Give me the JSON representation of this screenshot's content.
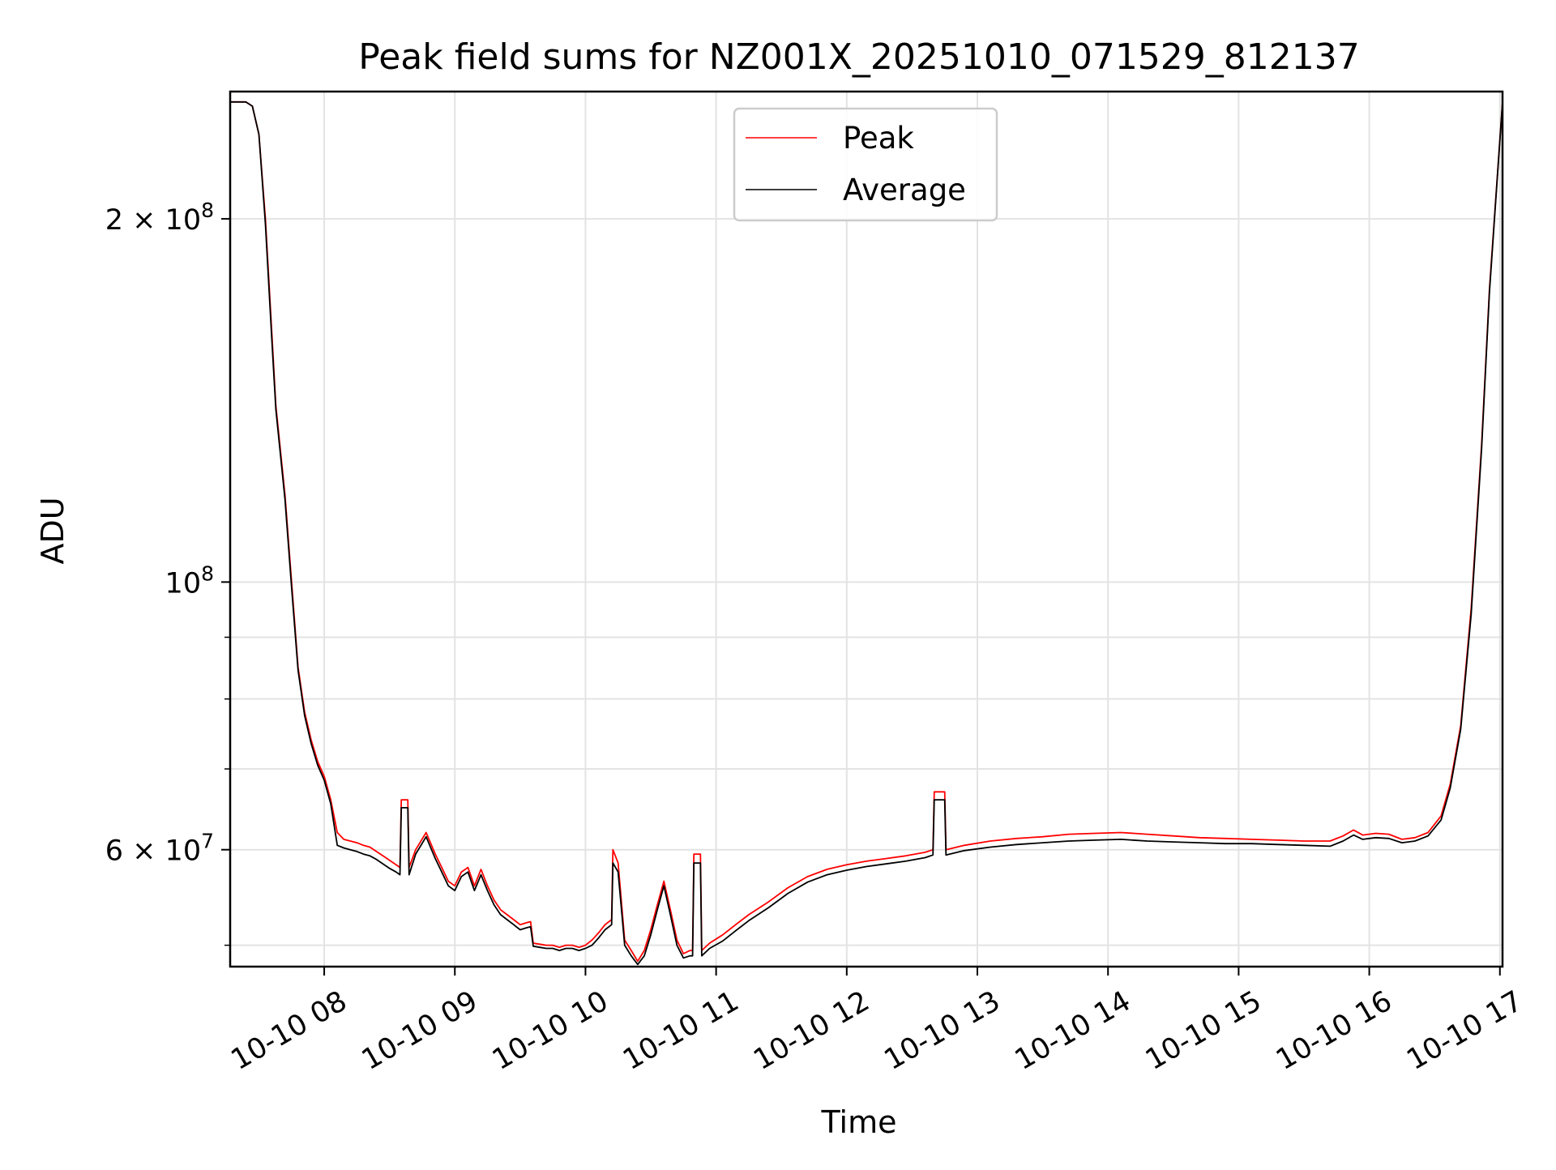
{
  "chart_data": {
    "type": "line",
    "title": "Peak field sums for NZ001X_20251010_071529_812137",
    "xlabel": "Time",
    "ylabel": "ADU",
    "yscale": "log",
    "grid": true,
    "legend": {
      "placement": "upper-center",
      "entries": [
        "Peak",
        "Average"
      ]
    },
    "xlim": [
      7.28,
      17.02
    ],
    "ylim": [
      48000000,
      255000000
    ],
    "x_ticks": [
      {
        "value": 8,
        "label": "10-10 08"
      },
      {
        "value": 9,
        "label": "10-10 09"
      },
      {
        "value": 10,
        "label": "10-10 10"
      },
      {
        "value": 11,
        "label": "10-10 11"
      },
      {
        "value": 12,
        "label": "10-10 12"
      },
      {
        "value": 13,
        "label": "10-10 13"
      },
      {
        "value": 14,
        "label": "10-10 14"
      },
      {
        "value": 15,
        "label": "10-10 15"
      },
      {
        "value": 16,
        "label": "10-10 16"
      },
      {
        "value": 17,
        "label": "10-10 17"
      }
    ],
    "y_major_ticks": [
      {
        "value": 60000000,
        "base": "6 × 10",
        "exp": "7"
      },
      {
        "value": 100000000,
        "base": "10",
        "exp": "8"
      },
      {
        "value": 200000000,
        "base": "2 × 10",
        "exp": "8"
      }
    ],
    "y_minor_ticks": [
      50000000,
      70000000,
      80000000,
      90000000
    ],
    "series": [
      {
        "name": "Peak",
        "color": "#ff0000",
        "x": [
          7.28,
          7.4,
          7.45,
          7.5,
          7.55,
          7.6,
          7.63,
          7.66,
          7.7,
          7.75,
          7.8,
          7.85,
          7.9,
          7.95,
          8.0,
          8.05,
          8.1,
          8.15,
          8.2,
          8.25,
          8.3,
          8.35,
          8.4,
          8.45,
          8.5,
          8.55,
          8.58,
          8.59,
          8.64,
          8.65,
          8.7,
          8.78,
          8.85,
          8.9,
          8.95,
          9.0,
          9.05,
          9.1,
          9.15,
          9.2,
          9.25,
          9.3,
          9.35,
          9.4,
          9.45,
          9.5,
          9.55,
          9.58,
          9.6,
          9.65,
          9.7,
          9.75,
          9.8,
          9.85,
          9.9,
          9.95,
          10.0,
          10.05,
          10.1,
          10.15,
          10.2,
          10.21,
          10.25,
          10.3,
          10.35,
          10.4,
          10.45,
          10.5,
          10.55,
          10.6,
          10.65,
          10.7,
          10.75,
          10.8,
          10.82,
          10.83,
          10.88,
          10.89,
          10.95,
          11.05,
          11.15,
          11.25,
          11.4,
          11.55,
          11.7,
          11.85,
          12.0,
          12.15,
          12.3,
          12.45,
          12.6,
          12.66,
          12.67,
          12.75,
          12.76,
          12.9,
          13.1,
          13.3,
          13.5,
          13.7,
          13.9,
          14.1,
          14.3,
          14.5,
          14.7,
          14.9,
          15.1,
          15.3,
          15.5,
          15.7,
          15.8,
          15.88,
          15.95,
          16.05,
          16.15,
          16.25,
          16.35,
          16.45,
          16.55,
          16.62,
          16.7,
          16.78,
          16.86,
          16.92,
          17.02
        ],
        "y": [
          250000000,
          250000000,
          248000000,
          235000000,
          200000000,
          160000000,
          140000000,
          130000000,
          118000000,
          100000000,
          85000000,
          78000000,
          74000000,
          71000000,
          69000000,
          66000000,
          62000000,
          61200000,
          61000000,
          60800000,
          60500000,
          60300000,
          59800000,
          59300000,
          58800000,
          58300000,
          58000000,
          66000000,
          66000000,
          58000000,
          60000000,
          62000000,
          59500000,
          58000000,
          56500000,
          56000000,
          57500000,
          58000000,
          56000000,
          57800000,
          56000000,
          54500000,
          53500000,
          53000000,
          52500000,
          52000000,
          52200000,
          52300000,
          50200000,
          50100000,
          50000000,
          50000000,
          49800000,
          50000000,
          50000000,
          49800000,
          50000000,
          50500000,
          51200000,
          52000000,
          52500000,
          60000000,
          58500000,
          50500000,
          49500000,
          48500000,
          49500000,
          51500000,
          54000000,
          56500000,
          53500000,
          50500000,
          49200000,
          49500000,
          49500000,
          59500000,
          59500000,
          49500000,
          50200000,
          51000000,
          52000000,
          53000000,
          54300000,
          55800000,
          57000000,
          57800000,
          58300000,
          58700000,
          59000000,
          59300000,
          59700000,
          60000000,
          67000000,
          67000000,
          60000000,
          60500000,
          61000000,
          61300000,
          61500000,
          61800000,
          61900000,
          62000000,
          61800000,
          61600000,
          61400000,
          61300000,
          61200000,
          61100000,
          61000000,
          61000000,
          61600000,
          62300000,
          61700000,
          61900000,
          61800000,
          61200000,
          61400000,
          62000000,
          64000000,
          68000000,
          76000000,
          95000000,
          130000000,
          175000000,
          250000000
        ]
      },
      {
        "name": "Average",
        "color": "#000000",
        "x": [
          7.28,
          7.4,
          7.45,
          7.5,
          7.55,
          7.6,
          7.63,
          7.66,
          7.7,
          7.75,
          7.8,
          7.85,
          7.9,
          7.95,
          8.0,
          8.05,
          8.1,
          8.15,
          8.2,
          8.25,
          8.3,
          8.35,
          8.4,
          8.45,
          8.5,
          8.55,
          8.58,
          8.59,
          8.64,
          8.65,
          8.7,
          8.78,
          8.85,
          8.9,
          8.95,
          9.0,
          9.05,
          9.1,
          9.15,
          9.2,
          9.25,
          9.3,
          9.35,
          9.4,
          9.45,
          9.5,
          9.55,
          9.58,
          9.6,
          9.65,
          9.7,
          9.75,
          9.8,
          9.85,
          9.9,
          9.95,
          10.0,
          10.05,
          10.1,
          10.15,
          10.2,
          10.21,
          10.25,
          10.3,
          10.35,
          10.4,
          10.45,
          10.5,
          10.55,
          10.6,
          10.65,
          10.7,
          10.75,
          10.8,
          10.82,
          10.83,
          10.88,
          10.89,
          10.95,
          11.05,
          11.15,
          11.25,
          11.4,
          11.55,
          11.7,
          11.85,
          12.0,
          12.15,
          12.3,
          12.45,
          12.6,
          12.66,
          12.67,
          12.75,
          12.76,
          12.9,
          13.1,
          13.3,
          13.5,
          13.7,
          13.9,
          14.1,
          14.3,
          14.5,
          14.7,
          14.9,
          15.1,
          15.3,
          15.5,
          15.7,
          15.8,
          15.88,
          15.95,
          16.05,
          16.15,
          16.25,
          16.35,
          16.45,
          16.55,
          16.62,
          16.7,
          16.78,
          16.86,
          16.92,
          17.02
        ],
        "y": [
          250000000,
          250000000,
          248000000,
          235000000,
          198000000,
          158000000,
          139000000,
          129000000,
          117000000,
          99000000,
          84500000,
          77500000,
          73500000,
          70500000,
          68500000,
          65500000,
          60500000,
          60200000,
          60000000,
          59800000,
          59500000,
          59300000,
          58900000,
          58400000,
          57900000,
          57500000,
          57200000,
          65000000,
          65000000,
          57200000,
          59500000,
          61500000,
          59000000,
          57500000,
          56000000,
          55500000,
          57000000,
          57500000,
          55500000,
          57200000,
          55500000,
          54000000,
          53000000,
          52500000,
          52000000,
          51500000,
          51700000,
          51800000,
          49900000,
          49800000,
          49700000,
          49700000,
          49500000,
          49700000,
          49700000,
          49500000,
          49700000,
          50000000,
          50700000,
          51500000,
          52000000,
          58500000,
          57500000,
          50000000,
          49000000,
          48200000,
          49000000,
          51000000,
          53500000,
          56000000,
          53000000,
          50000000,
          48800000,
          49000000,
          49000000,
          58500000,
          58500000,
          49000000,
          49700000,
          50400000,
          51400000,
          52400000,
          53700000,
          55200000,
          56400000,
          57200000,
          57700000,
          58100000,
          58400000,
          58700000,
          59100000,
          59400000,
          66000000,
          66000000,
          59400000,
          59900000,
          60300000,
          60600000,
          60800000,
          61000000,
          61100000,
          61200000,
          61000000,
          60900000,
          60800000,
          60700000,
          60700000,
          60600000,
          60500000,
          60400000,
          61000000,
          61700000,
          61200000,
          61400000,
          61300000,
          60800000,
          61000000,
          61600000,
          63500000,
          67500000,
          75500000,
          94000000,
          129000000,
          174000000,
          250000000
        ]
      }
    ]
  }
}
